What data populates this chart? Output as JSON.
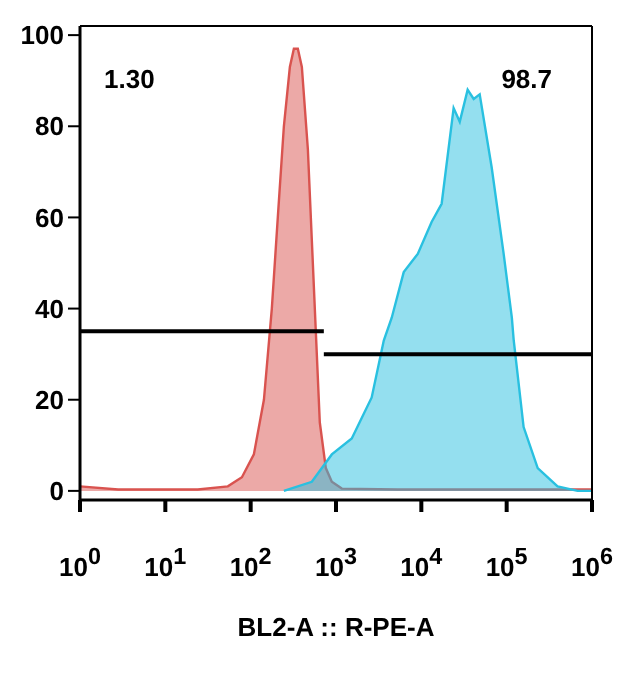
{
  "chart_data": {
    "type": "area",
    "xlabel": "BL2-A :: R-PE-A",
    "log": "x",
    "xlim": [
      1,
      1000000
    ],
    "xticks": [
      {
        "value": 1,
        "label": "10$^{0}$"
      },
      {
        "value": 10,
        "label": "10$^{1}$"
      },
      {
        "value": 100,
        "label": "10$^{2}$"
      },
      {
        "value": 1000,
        "label": "10$^{3}$"
      },
      {
        "value": 10000,
        "label": "10$^{4}$"
      },
      {
        "value": 100000,
        "label": "10$^{5}$"
      },
      {
        "value": 1000000,
        "label": "10$^{6}$"
      }
    ],
    "ylim": [
      -2,
      102
    ],
    "yticks": [
      0,
      20,
      40,
      60,
      80,
      100
    ],
    "series": [
      {
        "color": "#d9534f",
        "x": [
          1,
          2.8,
          24,
          54,
          79,
          109,
          143,
          177,
          208,
          245,
          288,
          321,
          357,
          398,
          468,
          521,
          580,
          646,
          760,
          893,
          1170,
          5300,
          1000000
        ],
        "values": [
          1,
          0.3,
          0.3,
          1,
          3,
          8,
          20,
          40,
          60,
          80,
          93,
          97,
          97,
          93,
          75,
          55,
          35,
          15,
          5,
          2,
          0.5,
          0.3,
          0.3
        ]
      },
      {
        "color": "#29c0e0",
        "x": [
          245,
          521,
          893,
          1530,
          2620,
          3630,
          4500,
          6220,
          9080,
          13200,
          17300,
          23900,
          28200,
          34900,
          41100,
          48300,
          66700,
          92200,
          115000,
          121000,
          158000,
          231000,
          395000,
          678000,
          1000000
        ],
        "values": [
          0,
          2,
          8,
          11.5,
          20.5,
          33,
          38,
          48,
          52,
          59,
          63,
          84,
          81,
          88,
          86,
          87,
          71,
          52,
          38,
          33,
          14,
          5,
          1,
          0,
          0
        ]
      },
      {
        "type": "line",
        "color": "#000000",
        "x": [
          1,
          720
        ],
        "values": [
          35,
          35
        ]
      },
      {
        "type": "line",
        "color": "#000000",
        "x": [
          720,
          1000000
        ],
        "values": [
          30,
          30
        ]
      }
    ],
    "annotations": [
      "1.30",
      "98.7"
    ]
  }
}
